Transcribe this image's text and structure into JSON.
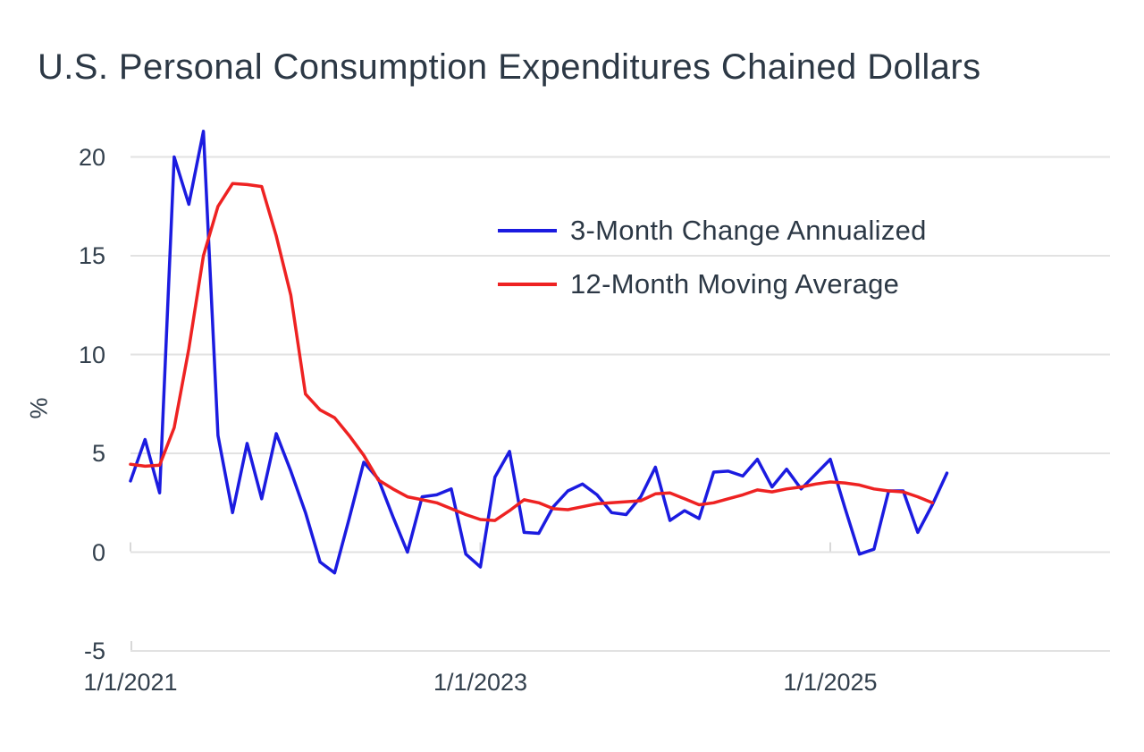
{
  "page": {
    "background_color": "#ffffff"
  },
  "chart_data": {
    "type": "line",
    "title": "U.S. Personal Consumption Expenditures Chained Dollars",
    "ylabel": "%",
    "xlabel": "",
    "ylim": [
      -5,
      21.5
    ],
    "grid": "horizontal-only",
    "legend_position": "inside-top-center",
    "ytick_labels": [
      "20",
      "15",
      "10",
      "5",
      "0",
      "-5"
    ],
    "ytick_values": [
      20,
      15,
      10,
      5,
      0,
      -5
    ],
    "xtick_labels": [
      "1/1/2021",
      "1/1/2023",
      "1/1/2025"
    ],
    "x_range": {
      "start": "1/1/2021",
      "frequency": "monthly",
      "end_series_0": "9/1/2025",
      "end_series_1": "8/1/2025"
    },
    "gridline_color": "#e2e2e2",
    "tick_color": "#d8d8d8",
    "text_color": "#33404d",
    "series": [
      {
        "name": "3-Month Change Annualized",
        "color": "#1b1be0",
        "values": [
          3.6,
          5.7,
          3.0,
          20.0,
          17.6,
          21.3,
          5.9,
          2.0,
          5.5,
          2.7,
          6.0,
          4.1,
          2.0,
          -0.5,
          -1.05,
          1.7,
          4.55,
          3.7,
          1.8,
          0.0,
          2.8,
          2.9,
          3.2,
          -0.1,
          -0.75,
          3.8,
          5.1,
          1.0,
          0.95,
          2.3,
          3.1,
          3.45,
          2.9,
          2.0,
          1.9,
          2.8,
          4.3,
          1.6,
          2.1,
          1.7,
          4.05,
          4.1,
          3.85,
          4.7,
          3.3,
          4.2,
          3.2,
          3.95,
          4.7,
          2.25,
          -0.1,
          0.15,
          3.1,
          3.1,
          1.0,
          2.4,
          4.0
        ]
      },
      {
        "name": "12-Month Moving Average",
        "color": "#ee2222",
        "values": [
          4.45,
          4.35,
          4.4,
          6.3,
          10.3,
          15.0,
          17.5,
          18.65,
          18.6,
          18.5,
          16.0,
          13.0,
          8.0,
          7.2,
          6.8,
          5.9,
          4.9,
          3.65,
          3.2,
          2.8,
          2.65,
          2.5,
          2.2,
          1.9,
          1.65,
          1.6,
          2.1,
          2.65,
          2.5,
          2.2,
          2.15,
          2.3,
          2.45,
          2.5,
          2.55,
          2.6,
          2.95,
          3.0,
          2.7,
          2.4,
          2.5,
          2.7,
          2.9,
          3.15,
          3.05,
          3.2,
          3.3,
          3.45,
          3.55,
          3.5,
          3.4,
          3.2,
          3.1,
          3.05,
          2.8,
          2.5
        ]
      }
    ]
  }
}
